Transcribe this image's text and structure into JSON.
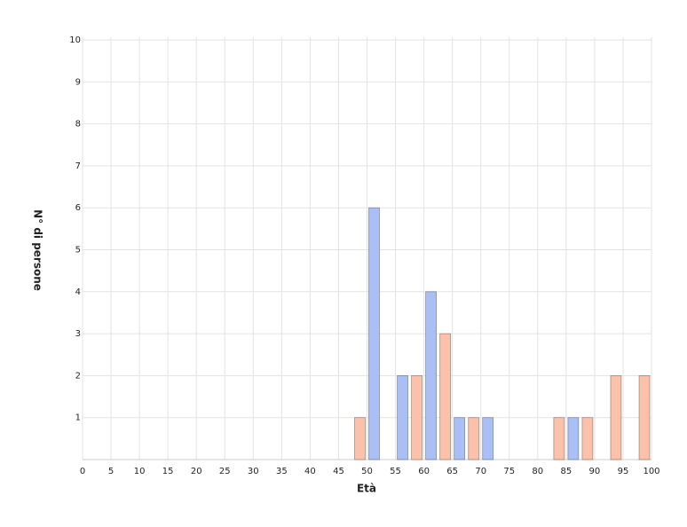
{
  "chart_data": {
    "type": "bar",
    "x_label": "Età",
    "y_label": "N° di persone",
    "x": [
      0,
      5,
      10,
      15,
      20,
      25,
      30,
      35,
      40,
      45,
      50,
      55,
      60,
      65,
      70,
      75,
      80,
      85,
      90,
      95,
      100
    ],
    "xlim": [
      0,
      100
    ],
    "ylim": [
      0,
      10
    ],
    "yticks": [
      1,
      2,
      3,
      4,
      5,
      6,
      7,
      8,
      9,
      10
    ],
    "grid": true,
    "series": [
      {
        "color": "#fbc1aa",
        "values": [
          0,
          0,
          0,
          0,
          0,
          0,
          0,
          0,
          0,
          0,
          1,
          0,
          2,
          3,
          1,
          0,
          0,
          1,
          1,
          2,
          2
        ]
      },
      {
        "color": "#a9bff5",
        "values": [
          0,
          0,
          0,
          0,
          0,
          0,
          0,
          0,
          0,
          0,
          6,
          2,
          4,
          1,
          1,
          0,
          0,
          1,
          0,
          0,
          0
        ]
      }
    ]
  }
}
